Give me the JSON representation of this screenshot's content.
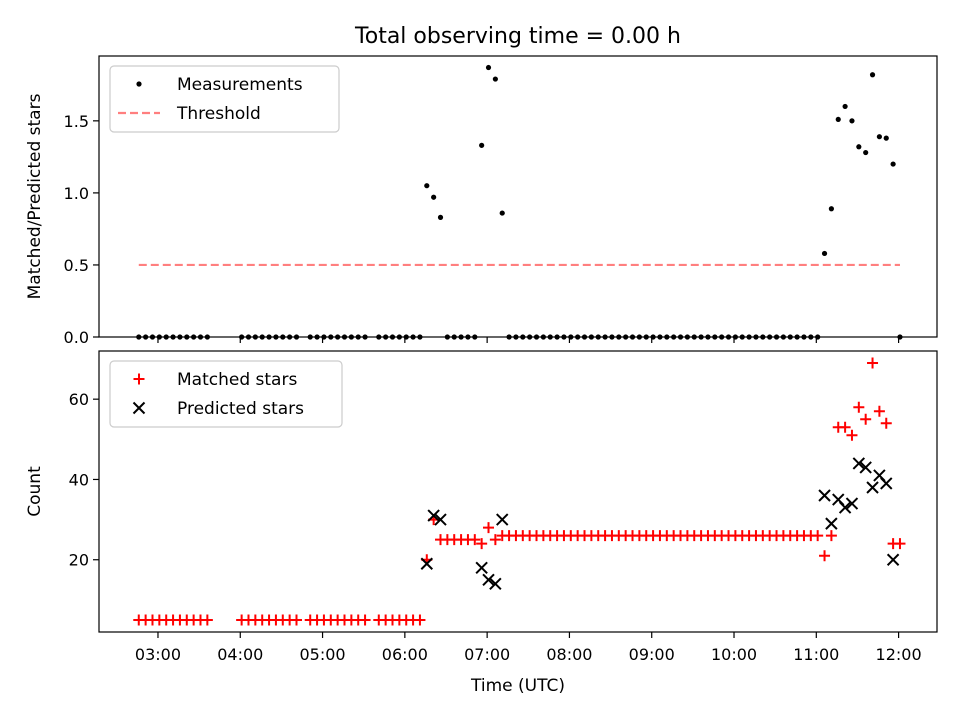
{
  "figure": {
    "title": "Total observing time = 0.00 h",
    "xlabel": "Time (UTC)"
  },
  "colors": {
    "measurement": "#000000",
    "threshold": "#ff7f7f",
    "matched": "#ff0000",
    "predicted": "#000000"
  },
  "chart_data": [
    {
      "type": "scatter",
      "panel": "top",
      "ylabel": "Matched/Predicted stars",
      "xlim": [
        "02:17",
        "12:28"
      ],
      "ylim": [
        0,
        1.95
      ],
      "yticks": [
        0.0,
        0.5,
        1.0,
        1.5
      ],
      "yticklabels": [
        "0.0",
        "0.5",
        "1.0",
        "1.5"
      ],
      "legend_placement": "upper-left",
      "series": [
        {
          "name": "Measurements",
          "marker": "dot",
          "x": [
            "02:46",
            "02:51",
            "02:56",
            "03:01",
            "03:06",
            "03:11",
            "03:16",
            "03:21",
            "03:26",
            "03:31",
            "03:36",
            "04:01",
            "04:06",
            "04:11",
            "04:16",
            "04:21",
            "04:26",
            "04:31",
            "04:36",
            "04:41",
            "04:51",
            "04:56",
            "05:01",
            "05:06",
            "05:11",
            "05:16",
            "05:21",
            "05:26",
            "05:31",
            "05:41",
            "05:46",
            "05:51",
            "05:56",
            "06:01",
            "06:06",
            "06:11",
            "06:16",
            "06:21",
            "06:26",
            "06:31",
            "06:36",
            "06:41",
            "06:46",
            "06:51",
            "06:56",
            "07:01",
            "07:06",
            "07:11",
            "07:16",
            "07:21",
            "07:26",
            "07:31",
            "07:36",
            "07:41",
            "07:46",
            "07:51",
            "07:56",
            "08:01",
            "08:06",
            "08:11",
            "08:16",
            "08:21",
            "08:26",
            "08:31",
            "08:36",
            "08:41",
            "08:46",
            "08:51",
            "08:56",
            "09:01",
            "09:06",
            "09:11",
            "09:16",
            "09:21",
            "09:26",
            "09:31",
            "09:36",
            "09:41",
            "09:46",
            "09:51",
            "09:56",
            "10:01",
            "10:06",
            "10:11",
            "10:16",
            "10:21",
            "10:26",
            "10:31",
            "10:36",
            "10:41",
            "10:46",
            "10:51",
            "10:56",
            "11:01",
            "11:06",
            "11:11",
            "11:16",
            "11:21",
            "11:26",
            "11:31",
            "11:36",
            "11:41",
            "11:46",
            "11:51",
            "11:56",
            "12:01"
          ],
          "y": [
            0,
            0,
            0,
            0,
            0,
            0,
            0,
            0,
            0,
            0,
            0,
            0,
            0,
            0,
            0,
            0,
            0,
            0,
            0,
            0,
            0,
            0,
            0,
            0,
            0,
            0,
            0,
            0,
            0,
            0,
            0,
            0,
            0,
            0,
            0,
            0,
            1.05,
            0.97,
            0.83,
            0,
            0,
            0,
            0,
            0,
            1.33,
            1.87,
            1.79,
            0.86,
            0,
            0,
            0,
            0,
            0,
            0,
            0,
            0,
            0,
            0,
            0,
            0,
            0,
            0,
            0,
            0,
            0,
            0,
            0,
            0,
            0,
            0,
            0,
            0,
            0,
            0,
            0,
            0,
            0,
            0,
            0,
            0,
            0,
            0,
            0,
            0,
            0,
            0,
            0,
            0,
            0,
            0,
            0,
            0,
            0,
            0,
            0.58,
            0.89,
            1.51,
            1.6,
            1.5,
            1.32,
            1.28,
            1.82,
            1.39,
            1.38,
            1.2,
            0
          ]
        },
        {
          "name": "Threshold",
          "style": "dashed",
          "x": [
            "02:46",
            "12:01"
          ],
          "y": [
            0.5,
            0.5
          ]
        }
      ]
    },
    {
      "type": "scatter",
      "panel": "bottom",
      "ylabel": "Count",
      "xlim": [
        "02:17",
        "12:28"
      ],
      "ylim": [
        2,
        72
      ],
      "yticks": [
        20,
        40,
        60
      ],
      "yticklabels": [
        "20",
        "40",
        "60"
      ],
      "xticks": [
        "03:00",
        "04:00",
        "05:00",
        "06:00",
        "07:00",
        "08:00",
        "09:00",
        "10:00",
        "11:00",
        "12:00"
      ],
      "xticklabels": [
        "03:00",
        "04:00",
        "05:00",
        "06:00",
        "07:00",
        "08:00",
        "09:00",
        "10:00",
        "11:00",
        "12:00"
      ],
      "legend_placement": "upper-left",
      "series": [
        {
          "name": "Matched stars",
          "marker": "plus",
          "x": [
            "02:46",
            "02:51",
            "02:56",
            "03:01",
            "03:06",
            "03:11",
            "03:16",
            "03:21",
            "03:26",
            "03:31",
            "03:36",
            "04:01",
            "04:06",
            "04:11",
            "04:16",
            "04:21",
            "04:26",
            "04:31",
            "04:36",
            "04:41",
            "04:51",
            "04:56",
            "05:01",
            "05:06",
            "05:11",
            "05:16",
            "05:21",
            "05:26",
            "05:31",
            "05:41",
            "05:46",
            "05:51",
            "05:56",
            "06:01",
            "06:06",
            "06:11",
            "06:16",
            "06:21",
            "06:26",
            "06:31",
            "06:36",
            "06:41",
            "06:46",
            "06:51",
            "06:56",
            "07:01",
            "07:06",
            "07:11",
            "07:16",
            "07:21",
            "07:26",
            "07:31",
            "07:36",
            "07:41",
            "07:46",
            "07:51",
            "07:56",
            "08:01",
            "08:06",
            "08:11",
            "08:16",
            "08:21",
            "08:26",
            "08:31",
            "08:36",
            "08:41",
            "08:46",
            "08:51",
            "08:56",
            "09:01",
            "09:06",
            "09:11",
            "09:16",
            "09:21",
            "09:26",
            "09:31",
            "09:36",
            "09:41",
            "09:46",
            "09:51",
            "09:56",
            "10:01",
            "10:06",
            "10:11",
            "10:16",
            "10:21",
            "10:26",
            "10:31",
            "10:36",
            "10:41",
            "10:46",
            "10:51",
            "10:56",
            "11:01",
            "11:06",
            "11:11",
            "11:16",
            "11:21",
            "11:26",
            "11:31",
            "11:36",
            "11:41",
            "11:46",
            "11:51",
            "11:56",
            "12:01"
          ],
          "y": [
            5,
            5,
            5,
            5,
            5,
            5,
            5,
            5,
            5,
            5,
            5,
            5,
            5,
            5,
            5,
            5,
            5,
            5,
            5,
            5,
            5,
            5,
            5,
            5,
            5,
            5,
            5,
            5,
            5,
            5,
            5,
            5,
            5,
            5,
            5,
            5,
            20,
            30,
            25,
            25,
            25,
            25,
            25,
            25,
            24,
            28,
            25,
            26,
            26,
            26,
            26,
            26,
            26,
            26,
            26,
            26,
            26,
            26,
            26,
            26,
            26,
            26,
            26,
            26,
            26,
            26,
            26,
            26,
            26,
            26,
            26,
            26,
            26,
            26,
            26,
            26,
            26,
            26,
            26,
            26,
            26,
            26,
            26,
            26,
            26,
            26,
            26,
            26,
            26,
            26,
            26,
            26,
            26,
            26,
            21,
            26,
            53,
            53,
            51,
            58,
            55,
            69,
            57,
            54,
            24,
            24
          ]
        },
        {
          "name": "Predicted stars",
          "marker": "x",
          "x": [
            "06:16",
            "06:21",
            "06:26",
            "06:56",
            "07:01",
            "07:06",
            "07:11",
            "11:06",
            "11:11",
            "11:16",
            "11:21",
            "11:26",
            "11:31",
            "11:36",
            "11:41",
            "11:46",
            "11:51",
            "11:56"
          ],
          "y": [
            19,
            31,
            30,
            18,
            15,
            14,
            30,
            36,
            29,
            35,
            33,
            34,
            44,
            43,
            38,
            41,
            39,
            20
          ]
        }
      ]
    }
  ]
}
